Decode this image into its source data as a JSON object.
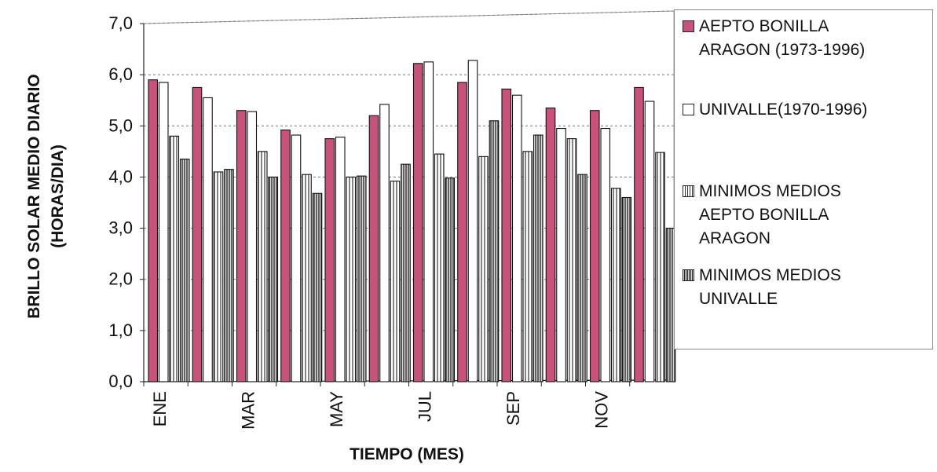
{
  "chart_data": {
    "type": "bar",
    "ylabel": "BRILLO SOLAR  MEDIO DIARIO",
    "ylabel2": "(HORAS/DIA)",
    "xlabel": "TIEMPO (MES)",
    "ylim": [
      0,
      7
    ],
    "yticks": [
      "0,0",
      "1,0",
      "2,0",
      "3,0",
      "4,0",
      "5,0",
      "6,0",
      "7,0"
    ],
    "categories": [
      "ENE",
      "",
      "MAR",
      "",
      "MAY",
      "",
      "JUL",
      "",
      "SEP",
      "",
      "NOV",
      ""
    ],
    "grid": true,
    "legend_position": "right",
    "series": [
      {
        "name": "AEPTO BONILLA\nARAGON (1973-1996)",
        "color": "#c8537a",
        "pattern": "solid",
        "values": [
          5.9,
          5.75,
          5.3,
          4.92,
          4.75,
          5.2,
          6.22,
          5.85,
          5.72,
          5.35,
          5.3,
          5.75
        ]
      },
      {
        "name": "UNIVALLE(1970-1996)",
        "color": "#ffffff",
        "pattern": "plain",
        "values": [
          5.85,
          5.55,
          5.28,
          4.82,
          4.78,
          5.42,
          6.25,
          6.28,
          5.6,
          4.95,
          4.95,
          5.48
        ]
      },
      {
        "name": "MINIMOS MEDIOS\nAEPTO BONILLA\nARAGON",
        "color": "#ffffff",
        "pattern": "vlines",
        "values": [
          4.8,
          4.1,
          4.5,
          4.05,
          4.0,
          3.92,
          4.45,
          4.4,
          4.5,
          4.75,
          3.78,
          4.48
        ]
      },
      {
        "name": "MINIMOS MEDIOS\nUNIVALLE",
        "color": "#e6e6e6",
        "pattern": "dense",
        "values": [
          4.35,
          4.15,
          4.0,
          3.68,
          4.02,
          4.25,
          3.98,
          5.1,
          4.82,
          4.05,
          3.6,
          3.0
        ]
      }
    ]
  }
}
